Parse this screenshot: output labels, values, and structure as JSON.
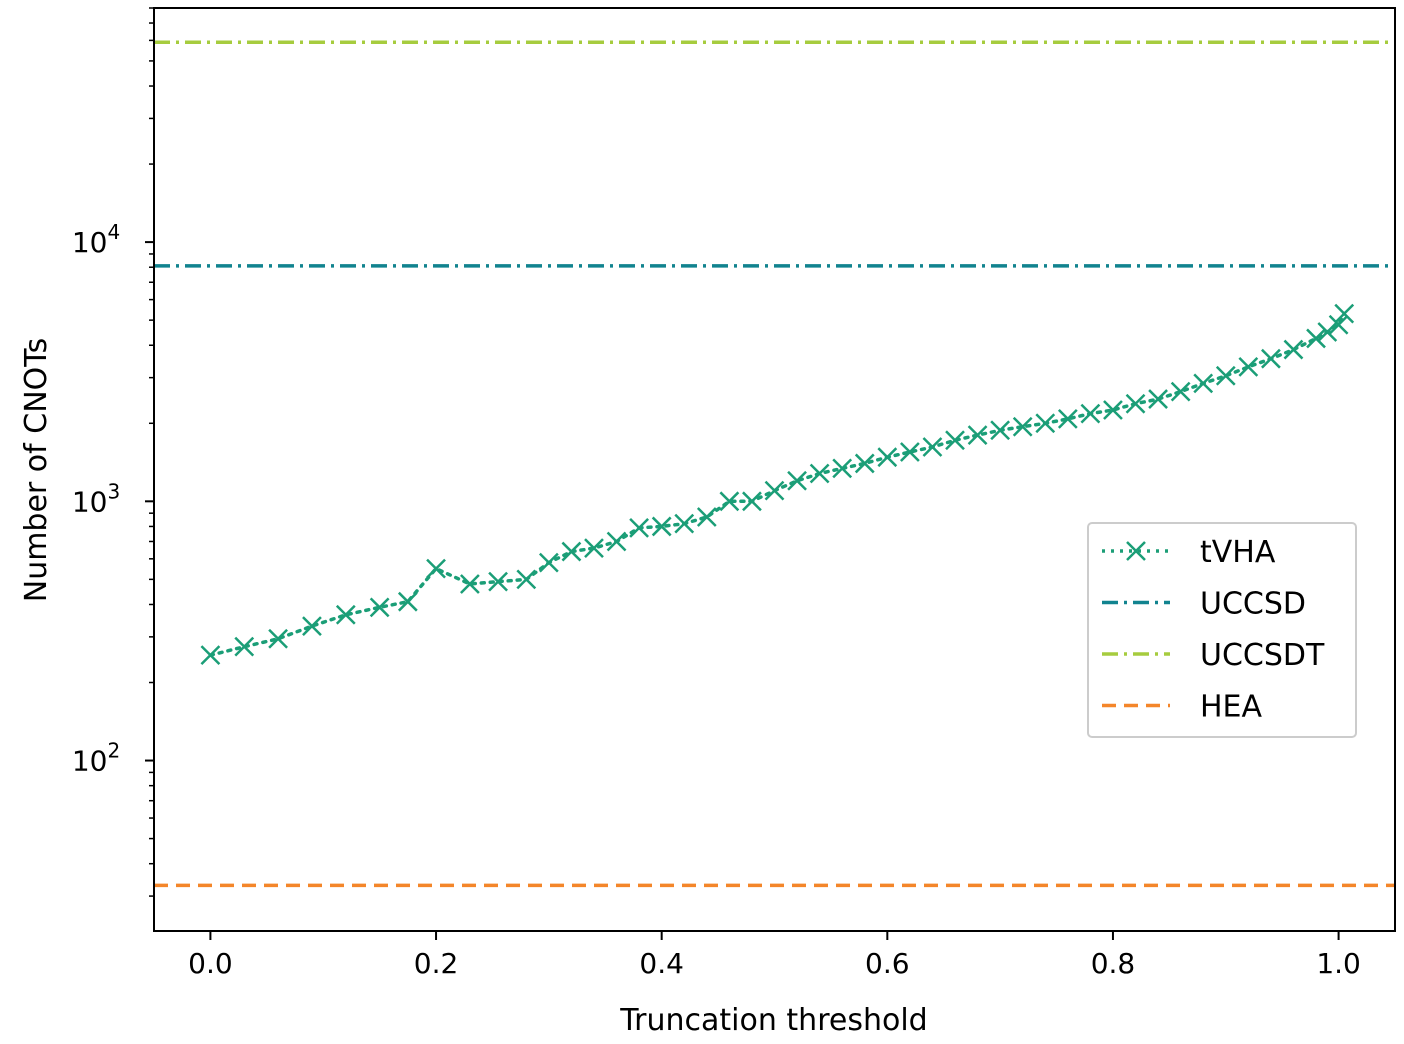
{
  "chart_data": {
    "type": "line",
    "title": "",
    "xlabel": "Truncation threshold",
    "ylabel": "Number of CNOTs",
    "xlim": [
      -0.05,
      1.05
    ],
    "ylim": [
      22,
      80000
    ],
    "yscale": "log",
    "grid": false,
    "legend_position": "center-right",
    "x_ticks": [
      {
        "value": 0.0,
        "label": "0.0"
      },
      {
        "value": 0.2,
        "label": "0.2"
      },
      {
        "value": 0.4,
        "label": "0.4"
      },
      {
        "value": 0.6,
        "label": "0.6"
      },
      {
        "value": 0.8,
        "label": "0.8"
      },
      {
        "value": 1.0,
        "label": "1.0"
      }
    ],
    "y_ticks": [
      {
        "value": 100,
        "base": "10",
        "exp": "2"
      },
      {
        "value": 1000,
        "base": "10",
        "exp": "3"
      },
      {
        "value": 10000,
        "base": "10",
        "exp": "4"
      }
    ],
    "series": [
      {
        "name": "tVHA",
        "style": "dotted",
        "marker": "x",
        "color": "#1b9e77",
        "x": [
          0.0,
          0.03,
          0.06,
          0.09,
          0.12,
          0.15,
          0.175,
          0.2,
          0.23,
          0.255,
          0.28,
          0.3,
          0.32,
          0.34,
          0.36,
          0.38,
          0.4,
          0.42,
          0.44,
          0.46,
          0.48,
          0.5,
          0.52,
          0.54,
          0.56,
          0.58,
          0.6,
          0.62,
          0.64,
          0.66,
          0.68,
          0.7,
          0.72,
          0.74,
          0.76,
          0.78,
          0.8,
          0.82,
          0.84,
          0.86,
          0.88,
          0.9,
          0.92,
          0.94,
          0.96,
          0.98,
          0.99,
          1.0,
          1.005
        ],
        "y": [
          255,
          275,
          295,
          330,
          365,
          390,
          410,
          550,
          480,
          490,
          500,
          580,
          640,
          660,
          700,
          790,
          800,
          820,
          870,
          1000,
          1000,
          1100,
          1200,
          1280,
          1340,
          1400,
          1480,
          1550,
          1620,
          1720,
          1800,
          1880,
          1940,
          2000,
          2080,
          2180,
          2250,
          2380,
          2480,
          2650,
          2850,
          3050,
          3300,
          3550,
          3850,
          4250,
          4500,
          4800,
          5300
        ]
      },
      {
        "name": "UCCSD",
        "style": "dashdot",
        "color": "#11838f",
        "value": 8100
      },
      {
        "name": "UCCSDT",
        "style": "dashdot",
        "color": "#a6cc3e",
        "value": 59000
      },
      {
        "name": "HEA",
        "style": "dashed",
        "color": "#f4862a",
        "value": 33
      }
    ]
  }
}
